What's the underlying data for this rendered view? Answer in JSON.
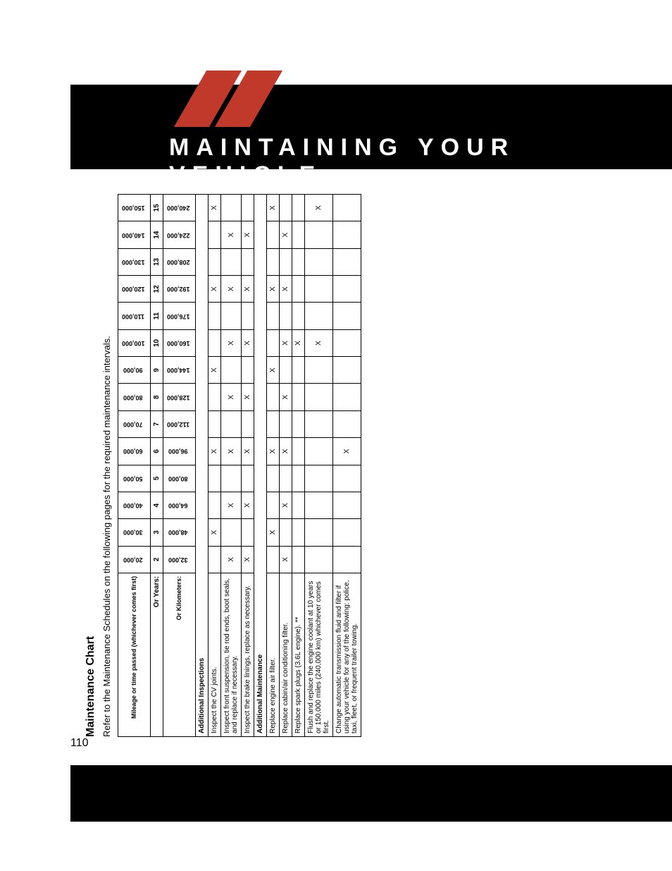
{
  "page_number": "110",
  "header_title": "MAINTAINING YOUR VEHICLE",
  "stripe_color": "#c0392b",
  "chart": {
    "title": "Maintenance Chart",
    "subtitle": "Refer to the Maintenance Schedules on the following pages for the required maintenance intervals.",
    "row_header_mileage": "Mileage or time passed (whichever comes first)",
    "row_header_years": "Or Years:",
    "row_header_km": "Or Kilometers:",
    "miles": [
      "20,000",
      "30,000",
      "40,000",
      "50,000",
      "60,000",
      "70,000",
      "80,000",
      "90,000",
      "100,000",
      "110,000",
      "120,000",
      "130,000",
      "140,000",
      "150,000"
    ],
    "years": [
      "2",
      "3",
      "4",
      "5",
      "6",
      "7",
      "8",
      "9",
      "10",
      "11",
      "12",
      "13",
      "14",
      "15"
    ],
    "km": [
      "32,000",
      "48,000",
      "64,000",
      "80,000",
      "96,000",
      "112,000",
      "128,000",
      "144,000",
      "160,000",
      "176,000",
      "192,000",
      "208,000",
      "224,000",
      "240,000"
    ],
    "section_inspections": "Additional Inspections",
    "rows_inspections": [
      {
        "label": "Inspect the CV joints.",
        "marks": [
          "",
          "X",
          "",
          "",
          "X",
          "",
          "",
          "X",
          "",
          "",
          "X",
          "",
          "",
          "X"
        ]
      },
      {
        "label": "Inspect front suspension, tie rod ends, boot seals, and replace if necessary.",
        "marks": [
          "X",
          "",
          "X",
          "",
          "X",
          "",
          "X",
          "",
          "X",
          "",
          "X",
          "",
          "X",
          ""
        ]
      },
      {
        "label": "Inspect the brake linings, replace as necessary.",
        "marks": [
          "X",
          "",
          "X",
          "",
          "X",
          "",
          "X",
          "",
          "X",
          "",
          "X",
          "",
          "X",
          ""
        ]
      }
    ],
    "section_maintenance": "Additional Maintenance",
    "rows_maintenance": [
      {
        "label": "Replace engine air filter.",
        "marks": [
          "",
          "X",
          "",
          "",
          "X",
          "",
          "",
          "X",
          "",
          "",
          "X",
          "",
          "",
          "X"
        ]
      },
      {
        "label": "Replace cabin/air conditioning filter.",
        "marks": [
          "X",
          "",
          "X",
          "",
          "X",
          "",
          "X",
          "",
          "X",
          "",
          "X",
          "",
          "X",
          ""
        ]
      },
      {
        "label": "Replace spark plugs (3.6L engine). **",
        "marks": [
          "",
          "",
          "",
          "",
          "",
          "",
          "",
          "",
          "X",
          "",
          "",
          "",
          "",
          ""
        ]
      },
      {
        "label": "Flush and replace the engine coolant at 10 years or 150,000 miles (240,000 km) whichever comes first.",
        "marks": [
          "",
          "",
          "",
          "",
          "",
          "",
          "",
          "",
          "X",
          "",
          "",
          "",
          "",
          "X"
        ]
      },
      {
        "label": "Change automatic transmission fluid and filter if using your vehicle for any of the following: police, taxi, fleet, or frequent trailer towing.",
        "marks": [
          "",
          "",
          "",
          "",
          "X",
          "",
          "",
          "",
          "",
          "",
          "",
          "",
          "",
          ""
        ]
      }
    ]
  }
}
